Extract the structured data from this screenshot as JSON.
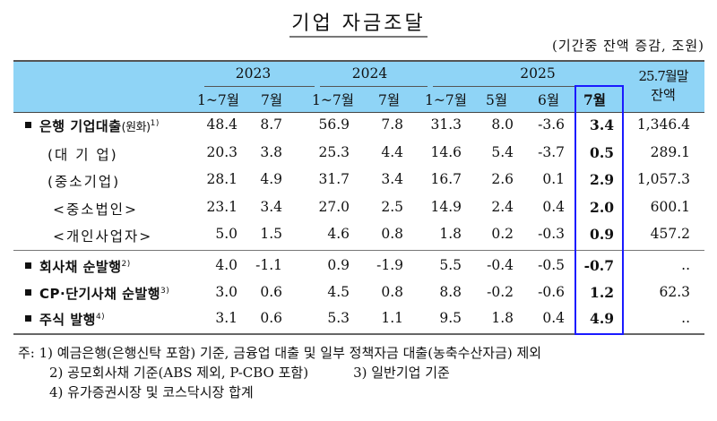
{
  "title": "기업 자금조달",
  "unit_note": "(기간중 잔액 증감, 조원)",
  "header": {
    "years": [
      "2023",
      "2024",
      "2025"
    ],
    "sub_columns": [
      "1~7월",
      "7월",
      "1~7월",
      "7월",
      "1~7월",
      "5월",
      "6월",
      "7월"
    ],
    "balance_label_line1": "25.7월말",
    "balance_label_line2": "잔액"
  },
  "rows": [
    {
      "label": "은행 기업대출",
      "label_paren": "(원화)",
      "footnote": "1)",
      "type": "main",
      "values": [
        "48.4",
        "8.7",
        "56.9",
        "7.8",
        "31.3",
        "8.0",
        "-3.6",
        "3.4",
        "1,346.4"
      ]
    },
    {
      "label": "(대 기 업)",
      "type": "sub",
      "values": [
        "20.3",
        "3.8",
        "25.3",
        "4.4",
        "14.6",
        "5.4",
        "-3.7",
        "0.5",
        "289.1"
      ]
    },
    {
      "label": "(중소기업)",
      "type": "sub",
      "values": [
        "28.1",
        "4.9",
        "31.7",
        "3.4",
        "16.7",
        "2.6",
        "0.1",
        "2.9",
        "1,057.3"
      ]
    },
    {
      "label": "<중소법인>",
      "type": "sub2",
      "values": [
        "23.1",
        "3.4",
        "27.0",
        "2.5",
        "14.9",
        "2.4",
        "0.4",
        "2.0",
        "600.1"
      ]
    },
    {
      "label": "<개인사업자>",
      "type": "sub2",
      "values": [
        "5.0",
        "1.5",
        "4.6",
        "0.8",
        "1.8",
        "0.2",
        "-0.3",
        "0.9",
        "457.2"
      ]
    },
    {
      "label": "회사채 순발행",
      "footnote": "2)",
      "type": "main",
      "values": [
        "4.0",
        "-1.1",
        "0.9",
        "-1.9",
        "5.5",
        "-0.4",
        "-0.5",
        "-0.7",
        ".."
      ]
    },
    {
      "label": "CP·단기사채 순발행",
      "footnote": "3)",
      "type": "main",
      "values": [
        "3.0",
        "0.6",
        "4.5",
        "0.8",
        "8.8",
        "-0.2",
        "-0.6",
        "1.2",
        "62.3"
      ]
    },
    {
      "label": "주식 발행",
      "footnote": "4)",
      "type": "main",
      "values": [
        "3.1",
        "0.6",
        "5.3",
        "1.1",
        "9.5",
        "1.8",
        "0.4",
        "4.9",
        ".."
      ]
    }
  ],
  "notes": {
    "prefix": "주:",
    "n1": "1) 예금은행(은행신탁 포함) 기준, 금융업 대출 및 일부 정책자금 대출(농축수산자금) 제외",
    "n2": "2) 공모회사채 기준(ABS 제외, P-CBO 포함)",
    "n3": "3) 일반기업 기준",
    "n4": "4) 유가증권시장 및 코스닥시장 합계"
  },
  "colors": {
    "header_bg": "#8fd4f6",
    "highlight_border": "#1a1aff"
  }
}
